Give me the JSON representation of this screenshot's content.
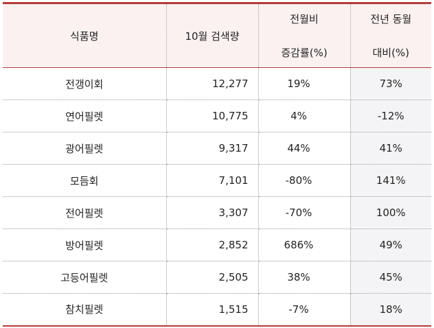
{
  "table": {
    "headers": {
      "name": "식품명",
      "search": "10월 검색량",
      "mom_line1": "전월비",
      "mom_line2": "증감률(%)",
      "yoy_line1": "전년 동월",
      "yoy_line2": "대비(%)"
    },
    "rows": [
      {
        "name": "전갱이회",
        "search": "12,277",
        "mom": "19%",
        "yoy": "73%"
      },
      {
        "name": "연어필렛",
        "search": "10,775",
        "mom": "4%",
        "yoy": "-12%"
      },
      {
        "name": "광어필렛",
        "search": "9,317",
        "mom": "44%",
        "yoy": "41%"
      },
      {
        "name": "모듬회",
        "search": "7,101",
        "mom": "-80%",
        "yoy": "141%"
      },
      {
        "name": "전어필렛",
        "search": "3,307",
        "mom": "-70%",
        "yoy": "100%"
      },
      {
        "name": "방어필렛",
        "search": "2,852",
        "mom": "686%",
        "yoy": "49%"
      },
      {
        "name": "고등어필렛",
        "search": "2,505",
        "mom": "38%",
        "yoy": "45%"
      },
      {
        "name": "참치필렛",
        "search": "1,515",
        "mom": "-7%",
        "yoy": "18%"
      }
    ]
  }
}
